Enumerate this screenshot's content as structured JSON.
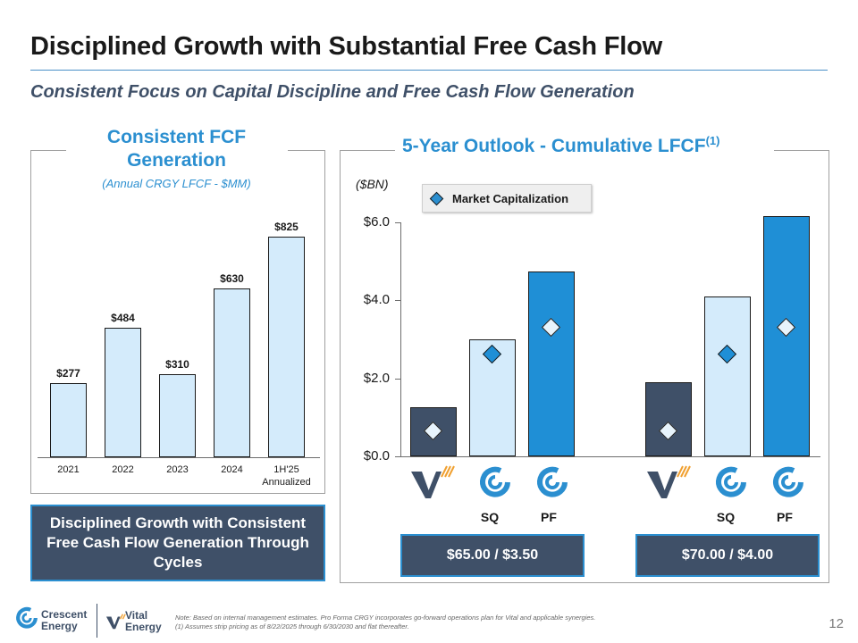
{
  "title": "Disciplined Growth with Substantial Free Cash Flow",
  "subtitle": "Consistent Focus on Capital Discipline and Free Cash Flow Generation",
  "left_panel": {
    "heading": "Consistent FCF Generation",
    "subheading": "(Annual CRGY LFCF - $MM)",
    "callout": "Disciplined Growth with Consistent Free Cash Flow Generation Through Cycles"
  },
  "right_panel": {
    "heading": "5-Year Outlook - Cumulative LFCF",
    "heading_sup": "(1)",
    "unit": "($BN)",
    "legend": "Market Capitalization",
    "case_labels": {
      "sq_1": "SQ",
      "pf_1": "PF",
      "sq_2": "SQ",
      "pf_2": "PF"
    },
    "price_boxes": [
      "$65.00 / $3.50",
      "$70.00 / $4.00"
    ]
  },
  "chart_data": [
    {
      "type": "bar",
      "title": "Consistent FCF Generation",
      "subtitle": "(Annual CRGY LFCF - $MM)",
      "categories": [
        "2021",
        "2022",
        "2023",
        "2024",
        "1H'25 Annualized"
      ],
      "values": [
        277,
        484,
        310,
        630,
        825
      ],
      "labels": [
        "$277",
        "$484",
        "$310",
        "$630",
        "$825"
      ],
      "ylim": [
        0,
        900
      ]
    },
    {
      "type": "bar",
      "title": "5-Year Outlook - Cumulative LFCF",
      "ylabel": "($BN)",
      "ylim": [
        0,
        6.0
      ],
      "yticks": [
        "$0.0",
        "$2.0",
        "$4.0",
        "$6.0"
      ],
      "groups": [
        "$65.00 / $3.50",
        "$70.00 / $4.00"
      ],
      "categories": [
        "Vital",
        "SQ",
        "PF",
        "Vital",
        "SQ",
        "PF"
      ],
      "series": [
        {
          "name": "Cumulative LFCF",
          "values": [
            1.25,
            3.0,
            4.75,
            1.9,
            4.1,
            6.15
          ]
        },
        {
          "name": "Market Capitalization",
          "values": [
            0.65,
            2.6,
            3.3,
            0.65,
            2.6,
            3.3
          ]
        }
      ],
      "colors": [
        "#3f5068",
        "#d4ebfb",
        "#1f8fd6",
        "#3f5068",
        "#d4ebfb",
        "#1f8fd6"
      ]
    }
  ],
  "footer": {
    "crescent_line1": "Crescent",
    "crescent_line2": "Energy",
    "vital_line1": "Vital",
    "vital_line2": "Energy",
    "note_line1": "Note: Based on internal management estimates. Pro Forma CRGY incorporates go-forward operations plan for Vital and applicable synergies.",
    "note_line2": "(1)      Assumes strip pricing as of 8/22/2025 through 6/30/2030 and flat thereafter.",
    "page_number": "12"
  },
  "colors": {
    "accent_blue": "#2b8fd0",
    "navy": "#3f5068",
    "light_blue": "#d4ebfb",
    "bright_blue": "#1f8fd6"
  }
}
